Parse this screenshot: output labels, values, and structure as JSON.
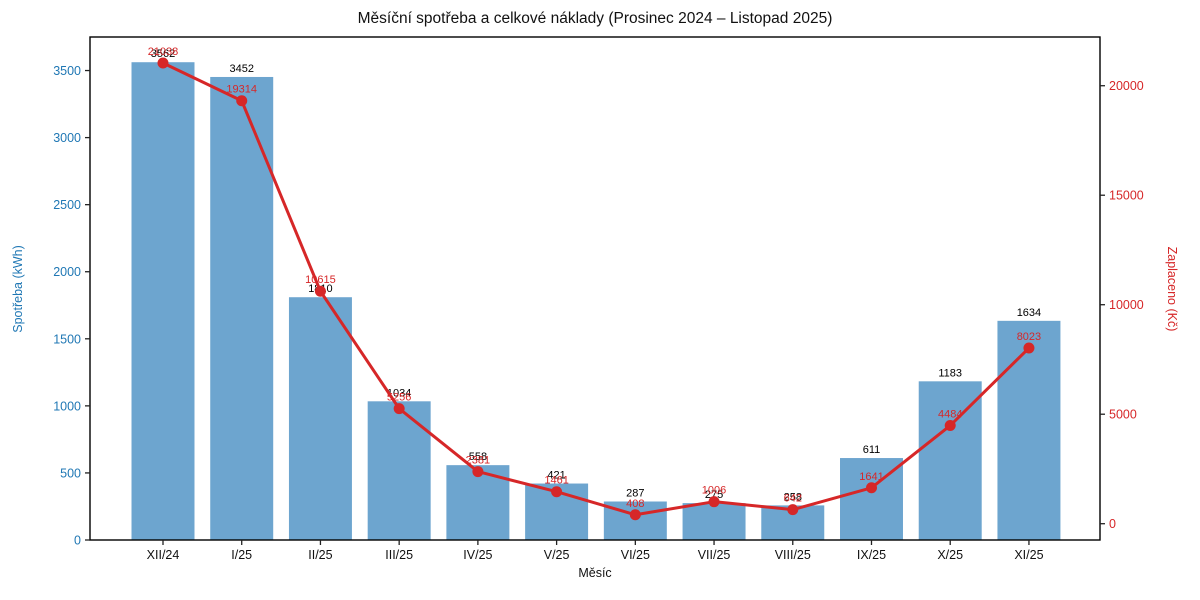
{
  "title": "Měsíční spotřeba a celkové náklady (Prosinec 2024 – Listopad 2025)",
  "chart_data": {
    "type": "bar+line",
    "categories": [
      "XII/24",
      "I/25",
      "II/25",
      "III/25",
      "IV/25",
      "V/25",
      "VI/25",
      "VII/25",
      "VIII/25",
      "IX/25",
      "X/25",
      "XI/25"
    ],
    "series": [
      {
        "name": "Spotřeba (kWh)",
        "type": "bar",
        "values": [
          3562,
          3452,
          1810,
          1034,
          558,
          421,
          287,
          275,
          258,
          611,
          1183,
          1634
        ]
      },
      {
        "name": "Zaplaceno (Kč)",
        "type": "line",
        "values": [
          21038,
          19314,
          10615,
          5256,
          2381,
          1461,
          408,
          1006,
          642,
          1641,
          4484,
          8023
        ]
      }
    ],
    "xlabel": "Měsíc",
    "ylabel_left": "Spotřeba (kWh)",
    "ylabel_right": "Zaplaceno (Kč)",
    "yticks_left": [
      0,
      500,
      1000,
      1500,
      2000,
      2500,
      3000,
      3500
    ],
    "yticks_right": [
      0,
      5000,
      10000,
      15000,
      20000
    ],
    "ylim_left": [
      0,
      3750
    ],
    "ylim_right": [
      -744,
      22225
    ],
    "grid": false,
    "legend": "none",
    "colors": {
      "bar_fill": "#6da5cf",
      "line": "#d62728",
      "axis_left_text": "#1f77b4",
      "axis_right_text": "#d62728",
      "bar_label": "#000000",
      "spine": "#000000",
      "tick_mark": "#222222",
      "xtick_text": "#111111"
    }
  }
}
